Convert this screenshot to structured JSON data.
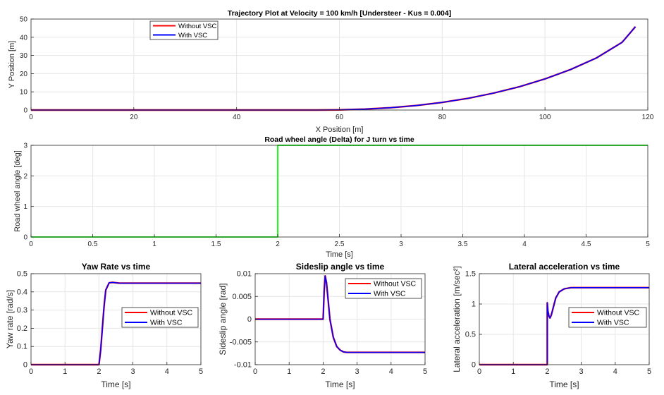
{
  "colors": {
    "without_vsc": "#ff0000",
    "with_vsc": "#0000ff",
    "delta": "#00ff00",
    "grid": "#e6e6e6",
    "axis": "#262626"
  },
  "chart_data": [
    {
      "id": "trajectory",
      "type": "line",
      "title": "Trajectory Plot at Velocity = 100 km/h [Understeer - Kus = 0.004]",
      "xlabel": "X Position [m]",
      "ylabel": "Y Position [m]",
      "xlim": [
        0,
        120
      ],
      "ylim": [
        0,
        50
      ],
      "xticks": [
        0,
        20,
        40,
        60,
        80,
        100,
        120
      ],
      "yticks": [
        0,
        10,
        20,
        30,
        40,
        50
      ],
      "xtick_labels": [
        "0",
        "20",
        "40",
        "60",
        "80",
        "100",
        "120"
      ],
      "ytick_labels": [
        "0",
        "10",
        "20",
        "30",
        "40",
        "50"
      ],
      "grid": true,
      "legend": "top-left",
      "series": [
        {
          "name": "Without VSC",
          "color": "#ff0000",
          "x": [
            0,
            55.6,
            60,
            65,
            70,
            75,
            80,
            85,
            90,
            95,
            100,
            105,
            110,
            115,
            117.6
          ],
          "y": [
            0,
            0,
            0.1,
            0.5,
            1.3,
            2.5,
            4.2,
            6.4,
            9.3,
            12.8,
            17.1,
            22.3,
            28.6,
            37.2,
            45.8
          ]
        },
        {
          "name": "With VSC",
          "color": "#0000ff",
          "x": [
            0,
            55.6,
            60,
            65,
            70,
            75,
            80,
            85,
            90,
            95,
            100,
            105,
            110,
            115,
            117.6
          ],
          "y": [
            0,
            0,
            0.1,
            0.5,
            1.3,
            2.5,
            4.2,
            6.4,
            9.3,
            12.8,
            17.1,
            22.3,
            28.6,
            37.2,
            45.8
          ]
        }
      ]
    },
    {
      "id": "delta",
      "type": "line",
      "title": "Road wheel angle (Delta) for J turn vs time",
      "xlabel": "Time [s]",
      "ylabel": "Road wheel angle [deg]",
      "xlim": [
        0,
        5
      ],
      "ylim": [
        0,
        3
      ],
      "xticks": [
        0,
        0.5,
        1,
        1.5,
        2,
        2.5,
        3,
        3.5,
        4,
        4.5,
        5
      ],
      "yticks": [
        0,
        1,
        2,
        3
      ],
      "xtick_labels": [
        "0",
        "0.5",
        "1",
        "1.5",
        "2",
        "2.5",
        "3",
        "3.5",
        "4",
        "4.5",
        "5"
      ],
      "ytick_labels": [
        "0",
        "1",
        "2",
        "3"
      ],
      "grid": true,
      "series": [
        {
          "color": "#00ff00",
          "x": [
            0,
            2,
            2,
            5
          ],
          "y": [
            0,
            0,
            3,
            3
          ]
        }
      ]
    },
    {
      "id": "yaw",
      "type": "line",
      "title": "Yaw Rate vs time",
      "xlabel": "Time [s]",
      "ylabel": "Yaw rate [rad/s]",
      "xlim": [
        0,
        5
      ],
      "ylim": [
        0,
        0.5
      ],
      "xticks": [
        0,
        1,
        2,
        3,
        4,
        5
      ],
      "yticks": [
        0,
        0.1,
        0.2,
        0.3,
        0.4,
        0.5
      ],
      "xtick_labels": [
        "0",
        "1",
        "2",
        "3",
        "4",
        "5"
      ],
      "ytick_labels": [
        "0",
        "0.1",
        "0.2",
        "0.3",
        "0.4",
        "0.5"
      ],
      "grid": true,
      "legend": "bottom-right",
      "series": [
        {
          "name": "Without VSC",
          "color": "#ff0000",
          "x": [
            0,
            2,
            2.05,
            2.1,
            2.15,
            2.2,
            2.3,
            2.4,
            2.6,
            3,
            5
          ],
          "y": [
            0,
            0,
            0.08,
            0.2,
            0.32,
            0.41,
            0.45,
            0.452,
            0.448,
            0.448,
            0.448
          ]
        },
        {
          "name": "With VSC",
          "color": "#0000ff",
          "x": [
            0,
            2,
            2.05,
            2.1,
            2.15,
            2.2,
            2.3,
            2.4,
            2.6,
            3,
            5
          ],
          "y": [
            0,
            0,
            0.08,
            0.2,
            0.32,
            0.41,
            0.45,
            0.452,
            0.448,
            0.448,
            0.448
          ]
        }
      ]
    },
    {
      "id": "sideslip",
      "type": "line",
      "title": "Sideslip angle vs time",
      "xlabel": "Time [s]",
      "ylabel": "Sideslip angle [rad]",
      "xlim": [
        0,
        5
      ],
      "ylim": [
        -0.01,
        0.01
      ],
      "xticks": [
        0,
        1,
        2,
        3,
        4,
        5
      ],
      "yticks": [
        -0.01,
        -0.005,
        0,
        0.005,
        0.01
      ],
      "xtick_labels": [
        "0",
        "1",
        "2",
        "3",
        "4",
        "5"
      ],
      "ytick_labels": [
        "-0.01",
        "-0.005",
        "0",
        "0.005",
        "0.01"
      ],
      "grid": true,
      "legend": "top-right",
      "series": [
        {
          "name": "Without VSC",
          "color": "#ff0000",
          "x": [
            0,
            2,
            2.03,
            2.06,
            2.1,
            2.15,
            2.2,
            2.3,
            2.4,
            2.5,
            2.6,
            2.7,
            2.9,
            5
          ],
          "y": [
            0,
            0,
            0.006,
            0.0095,
            0.008,
            0.004,
            0,
            -0.004,
            -0.006,
            -0.0068,
            -0.0072,
            -0.0073,
            -0.0073,
            -0.0073
          ]
        },
        {
          "name": "With VSC",
          "color": "#0000ff",
          "x": [
            0,
            2,
            2.03,
            2.06,
            2.1,
            2.15,
            2.2,
            2.3,
            2.4,
            2.5,
            2.6,
            2.7,
            2.9,
            5
          ],
          "y": [
            0,
            0,
            0.006,
            0.0095,
            0.008,
            0.004,
            0,
            -0.004,
            -0.006,
            -0.0068,
            -0.0072,
            -0.0073,
            -0.0073,
            -0.0073
          ]
        }
      ]
    },
    {
      "id": "latacc",
      "type": "line",
      "title": "Lateral acceleration vs time",
      "xlabel": "Time [s]",
      "ylabel": "Lateral acceleration [m/sec²]",
      "xlim": [
        0,
        5
      ],
      "ylim": [
        0,
        1.5
      ],
      "xticks": [
        0,
        1,
        2,
        3,
        4,
        5
      ],
      "yticks": [
        0,
        0.5,
        1,
        1.5
      ],
      "xtick_labels": [
        "0",
        "1",
        "2",
        "3",
        "4",
        "5"
      ],
      "ytick_labels": [
        "0",
        "0.5",
        "1",
        "1.5"
      ],
      "grid": true,
      "legend": "bottom-right",
      "series": [
        {
          "name": "Without VSC",
          "color": "#ff0000",
          "x": [
            0,
            2,
            2,
            2.02,
            2.05,
            2.08,
            2.12,
            2.18,
            2.25,
            2.35,
            2.5,
            2.7,
            3,
            5
          ],
          "y": [
            0,
            0,
            1.02,
            0.88,
            0.8,
            0.77,
            0.82,
            0.95,
            1.1,
            1.2,
            1.25,
            1.27,
            1.27,
            1.27
          ]
        },
        {
          "name": "With VSC",
          "color": "#0000ff",
          "x": [
            0,
            2,
            2,
            2.02,
            2.05,
            2.08,
            2.12,
            2.18,
            2.25,
            2.35,
            2.5,
            2.7,
            3,
            5
          ],
          "y": [
            0,
            0,
            1.02,
            0.88,
            0.8,
            0.77,
            0.82,
            0.95,
            1.1,
            1.2,
            1.25,
            1.27,
            1.27,
            1.27
          ]
        }
      ]
    }
  ]
}
